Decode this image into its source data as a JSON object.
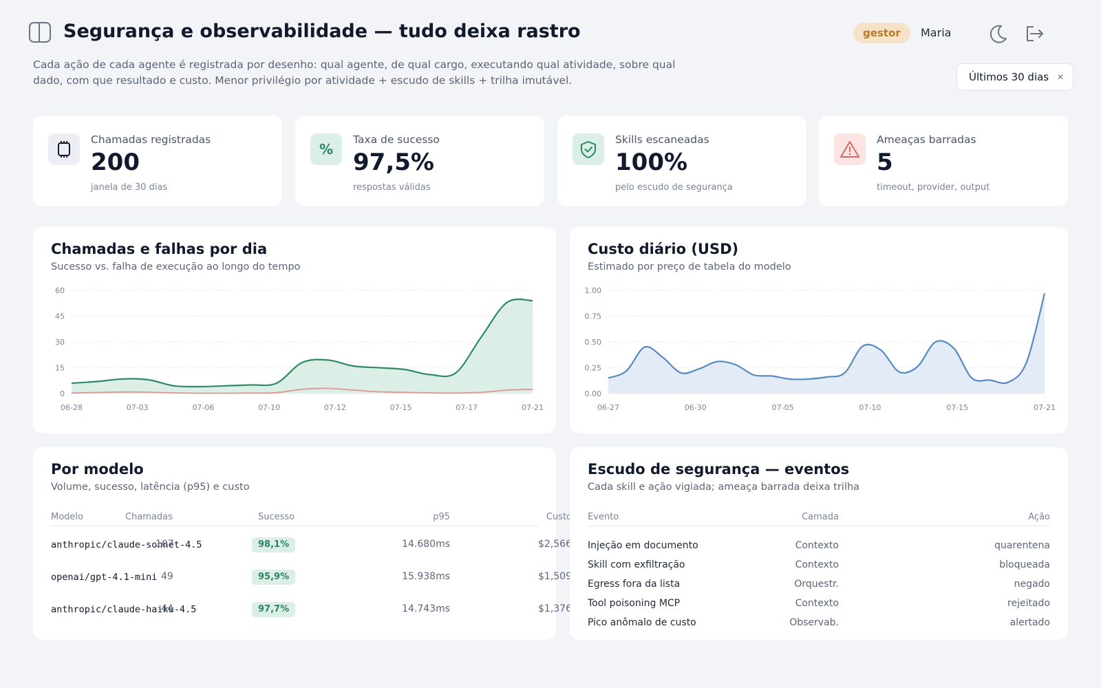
{
  "header": {
    "title": "Segurança e observabilidade — tudo deixa rastro",
    "role_badge": "gestor",
    "user_name": "Maria",
    "subtitle": "Cada ação de cada agente é registrada por desenho: qual agente, de qual cargo, executando qual atividade, sobre qual dado, com que resultado e custo. Menor privilégio por atividade + escudo de skills + trilha imutável.",
    "period": "Últimos 30 dias"
  },
  "icons": {
    "sidebar": "sidebar-toggle-icon",
    "theme": "moon-icon",
    "logout": "logout-icon"
  },
  "kpis": [
    {
      "label": "Chamadas registradas",
      "value": "200",
      "sub": "janela de 30 dias",
      "icon": "chip-icon",
      "color": "#111a2c",
      "bg": "#eceef3"
    },
    {
      "label": "Taxa de sucesso",
      "value": "97,5%",
      "sub": "respostas válidas",
      "icon": "percent-icon",
      "color": "#2a8560",
      "bg": "#dcefe6"
    },
    {
      "label": "Skills escaneadas",
      "value": "100%",
      "sub": "pelo escudo de segurança",
      "icon": "shield-check-icon",
      "color": "#2a8560",
      "bg": "#dcefe6"
    },
    {
      "label": "Ameaças barradas",
      "value": "5",
      "sub": "timeout, provider, output",
      "icon": "warning-icon",
      "color": "#d9695f",
      "bg": "#fbe4e2"
    }
  ],
  "calls_panel": {
    "title": "Chamadas e falhas por dia",
    "subtitle": "Sucesso vs. falha de execução ao longo do tempo"
  },
  "cost_panel": {
    "title": "Custo diário (USD)",
    "subtitle": "Estimado por preço de tabela do modelo"
  },
  "chart_data": [
    {
      "type": "area",
      "title": "Chamadas e falhas por dia",
      "subtitle": "Sucesso vs. falha de execução ao longo do tempo",
      "x_ticks": [
        "06-28",
        "07-03",
        "07-06",
        "07-10",
        "07-12",
        "07-15",
        "07-17",
        "07-21"
      ],
      "y_ticks": [
        "0",
        "15",
        "30",
        "45",
        "60"
      ],
      "ylim": [
        0,
        60
      ],
      "grid": true,
      "series": [
        {
          "values": [
            6,
            7,
            8.5,
            8,
            4.5,
            4,
            4.5,
            5,
            6,
            18,
            19.5,
            16,
            15,
            14,
            11,
            12,
            33,
            53,
            54
          ],
          "color": "#2e8a66",
          "fill": "#dcefe6"
        },
        {
          "values": [
            0.3,
            0.6,
            0.9,
            0.8,
            0.4,
            0.2,
            0.2,
            0.3,
            0.5,
            2.5,
            3,
            2,
            1,
            0.7,
            0.4,
            0.3,
            0.7,
            2,
            2.5
          ],
          "color": "#df9690"
        }
      ]
    },
    {
      "type": "area",
      "title": "Custo diário (USD)",
      "subtitle": "Estimado por preço de tabela do modelo",
      "x_ticks": [
        "06-27",
        "06-30",
        "07-05",
        "07-10",
        "07-15",
        "07-21"
      ],
      "y_ticks": [
        "0.00",
        "0.25",
        "0.50",
        "0.75",
        "1.00"
      ],
      "ylim": [
        0,
        1
      ],
      "grid": true,
      "series": [
        {
          "values": [
            0.15,
            0.22,
            0.45,
            0.35,
            0.2,
            0.24,
            0.31,
            0.28,
            0.18,
            0.17,
            0.14,
            0.14,
            0.16,
            0.2,
            0.46,
            0.42,
            0.21,
            0.26,
            0.5,
            0.44,
            0.15,
            0.13,
            0.11,
            0.3,
            0.97
          ],
          "color": "#5589bf",
          "fill": "#e2ebf6"
        }
      ]
    }
  ],
  "models_panel": {
    "title": "Por modelo",
    "subtitle": "Volume, sucesso, latência (p95) e custo",
    "columns": [
      "Modelo",
      "Chamadas",
      "Sucesso",
      "p95",
      "Custo"
    ],
    "rows": [
      {
        "model": "anthropic/claude-sonnet-4.5",
        "calls": "107",
        "success": "98,1%",
        "p95": "14.680ms",
        "cost": "$2,566"
      },
      {
        "model": "openai/gpt-4.1-mini",
        "calls": "49",
        "success": "95,9%",
        "p95": "15.938ms",
        "cost": "$1,509"
      },
      {
        "model": "anthropic/claude-haiku-4.5",
        "calls": "44",
        "success": "97,7%",
        "p95": "14.743ms",
        "cost": "$1,376"
      }
    ]
  },
  "shield_panel": {
    "title": "Escudo de segurança — eventos",
    "subtitle": "Cada skill e ação vigiada; ameaça barrada deixa trilha",
    "columns": [
      "Evento",
      "Camada",
      "Ação"
    ],
    "rows": [
      {
        "event": "Injeção em documento",
        "layer": "Contexto",
        "action": "quarentena"
      },
      {
        "event": "Skill com exfiltração",
        "layer": "Contexto",
        "action": "bloqueada"
      },
      {
        "event": "Egress fora da lista",
        "layer": "Orquestr.",
        "action": "negado"
      },
      {
        "event": "Tool poisoning MCP",
        "layer": "Contexto",
        "action": "rejeitado"
      },
      {
        "event": "Pico anômalo de custo",
        "layer": "Observab.",
        "action": "alertado"
      }
    ]
  }
}
